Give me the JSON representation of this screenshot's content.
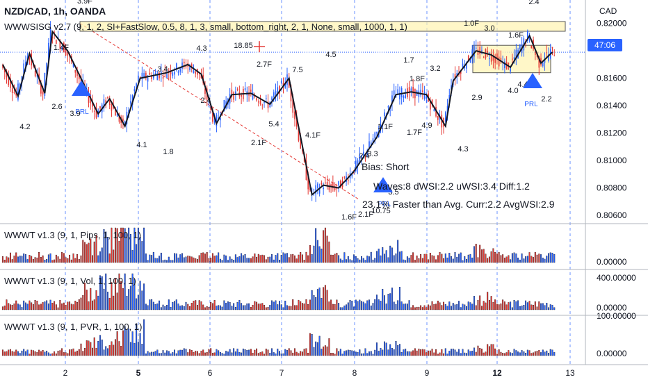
{
  "header": {
    "symbol": "NZD/CAD, 1h, OANDA",
    "main_indicator": "WWWSISG v2.7 (9, 1, 2, SI+FastSlow, 0.5, 8, 1, 3, small, bottom_right, 2, 1, None, small, 1000, 1, 1)",
    "currency": "CAD",
    "current_price_tag": "47:06"
  },
  "annotations": {
    "bias": "Bias: Short",
    "stat_line1": "Waves:8 dWSI:2.2 uWSI:3.4 Diff:1.2",
    "stat_line2": "23.1% Faster than Avg. Curr:2.2 AvgWSI:2.9"
  },
  "colors": {
    "up": "#2962ff",
    "down": "#e53935",
    "wave": "#131722",
    "grid": "#e0e3eb",
    "triangle": "#2962ff",
    "box_fill": "#fff3b0",
    "box_border": "#555555",
    "dash_line": "#e53935",
    "price_line": "#2962ff"
  },
  "chart_data": [
    {
      "type": "candlestick",
      "title": "NZD/CAD, 1h, OANDA",
      "y_axis_ticks": [
        "0.82000",
        "0.81600",
        "0.81400",
        "0.81200",
        "0.81000",
        "0.80800",
        "0.80600"
      ],
      "ylim": [
        0.8058,
        0.8215
      ],
      "x_axis_ticks": [
        "2",
        "5",
        "6",
        "7",
        "8",
        "9",
        "12",
        "13"
      ],
      "x_ticks_bold": [
        "5",
        "12"
      ],
      "current_price": 0.8179,
      "wave_volume_labels": [
        "3.9F",
        "1.4F",
        "2.6",
        "4.2",
        "3.9",
        "4.3",
        "3.4",
        "4.1",
        "1.8",
        "2.4",
        "18.85",
        "2.7F",
        "5.4",
        "2.1F",
        "7.5",
        "4.5",
        "4.1F",
        "1.6F",
        "2.1F",
        "2.4",
        "3.3",
        "3.5",
        "10.75",
        "1.7",
        "3.2",
        "1.8F",
        "1.1F",
        "1.7F",
        "4.9",
        "4.3",
        "1.0F",
        "3.0",
        "2.9",
        "1.6F",
        "2.4",
        "4.0",
        "4.4",
        "2.2"
      ],
      "pattern_labels": [
        "PRL",
        "PRL",
        "PRL"
      ],
      "wave_pivots_x_index": [
        0,
        9,
        12,
        16,
        22,
        27,
        33,
        38,
        46,
        51,
        58,
        61,
        64,
        70,
        76,
        81,
        86,
        89,
        92,
        96,
        103,
        108,
        113,
        119,
        124,
        128,
        131,
        136,
        141,
        147
      ]
    },
    {
      "type": "bar",
      "title": "WWWT v1.3 (9, 1, Pips, 1, 100, 1)",
      "y_axis_ticks": [
        "0.00000"
      ]
    },
    {
      "type": "bar",
      "title": "WWWT v1.3 (9, 1, Vol, 1, 100, 1)",
      "y_axis_ticks": [
        "400.00000",
        "0.00000"
      ]
    },
    {
      "type": "bar",
      "title": "WWWT v1.3 (9, 1, PVR, 1, 100, 1)",
      "y_axis_ticks": [
        "100.00000",
        "0.00000"
      ]
    }
  ]
}
